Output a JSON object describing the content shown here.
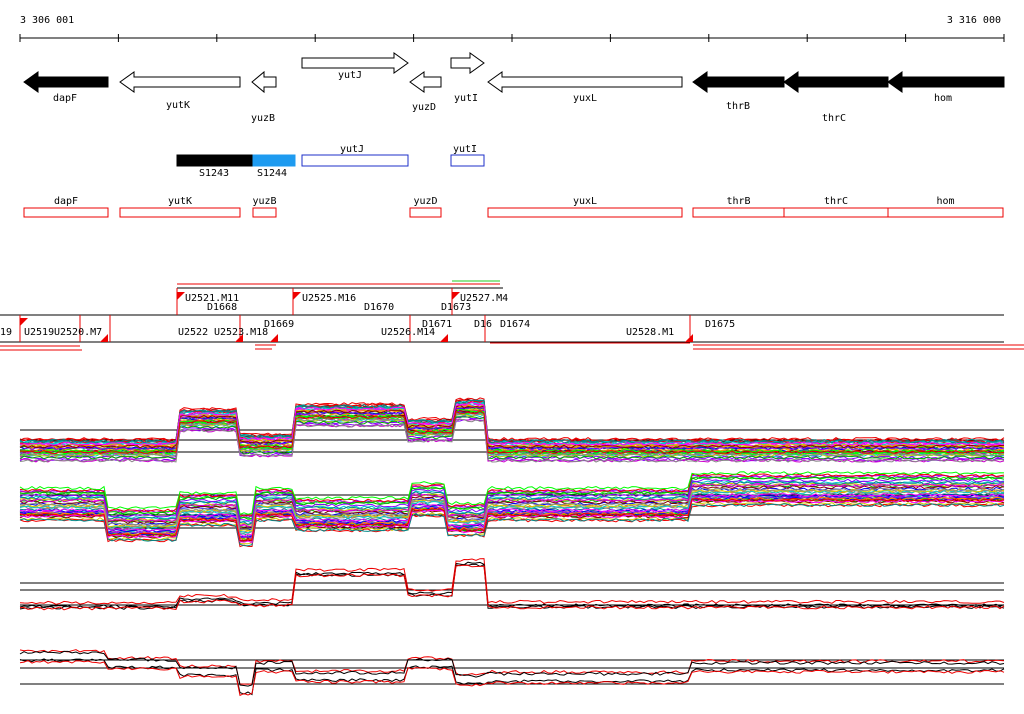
{
  "ruler": {
    "start": "3 306 001",
    "end": "3 316 000"
  },
  "genes": [
    {
      "label": "dapF"
    },
    {
      "label": "yutK"
    },
    {
      "label": "yuzB"
    },
    {
      "label": "yutJ"
    },
    {
      "label": "yuzD"
    },
    {
      "label": "yutI"
    },
    {
      "label": "yuxL"
    },
    {
      "label": "thrB"
    },
    {
      "label": "thrC"
    },
    {
      "label": "hom"
    }
  ],
  "transcripts": [
    {
      "label": "S1243"
    },
    {
      "label": "S1244"
    },
    {
      "label": "yutJ"
    },
    {
      "label": "yutI"
    }
  ],
  "cds": [
    {
      "label": "dapF"
    },
    {
      "label": "yutK"
    },
    {
      "label": "yuzB"
    },
    {
      "label": "yuzD"
    },
    {
      "label": "yuxL"
    },
    {
      "label": "thrB"
    },
    {
      "label": "thrC"
    },
    {
      "label": "hom"
    }
  ],
  "segments": [
    {
      "label": "U2521.M11"
    },
    {
      "label": "D1668"
    },
    {
      "label": "U2525.M16"
    },
    {
      "label": "D1670"
    },
    {
      "label": "D1673"
    },
    {
      "label": "U2527.M4"
    },
    {
      "label": "19"
    },
    {
      "label": "U2519"
    },
    {
      "label": "U2520.M7"
    },
    {
      "label": "U2522"
    },
    {
      "label": "U2523.M18"
    },
    {
      "label": "D1669"
    },
    {
      "label": "D1671"
    },
    {
      "label": "U2526.M14"
    },
    {
      "label": "D16"
    },
    {
      "label": "D1674"
    },
    {
      "label": "U2528.M1"
    },
    {
      "label": "D1675"
    }
  ]
}
